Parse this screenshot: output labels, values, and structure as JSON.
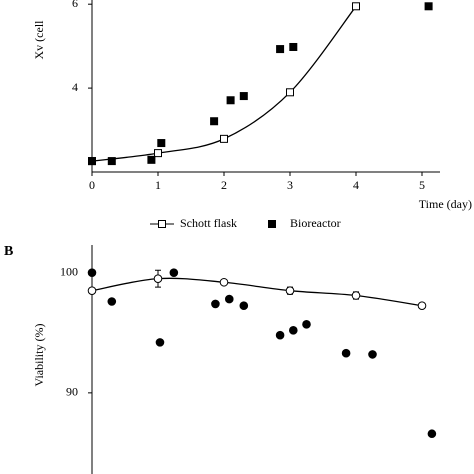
{
  "chart_data": [
    {
      "type": "scatter",
      "y_label": "Xv (cell",
      "x_label": "Time (day)",
      "xlim": [
        0,
        5.3
      ],
      "xticks": [
        0,
        1,
        2,
        3,
        4,
        5
      ],
      "ylim": [
        2,
        6.1
      ],
      "yticks": [
        4,
        6
      ],
      "legend": "bottom",
      "series": [
        {
          "name": "Schott flask",
          "color": "#000000",
          "marker": "open-square",
          "line": true,
          "x": [
            0,
            1,
            2,
            3,
            4
          ],
          "values": [
            2.26,
            2.45,
            2.79,
            3.9,
            5.95
          ]
        },
        {
          "name": "Bioreactor",
          "color": "#000000",
          "marker": "filled-square",
          "line": false,
          "x": [
            0,
            0.3,
            0.9,
            1.05,
            1.85,
            2.1,
            2.3,
            2.85,
            3.05,
            5.1
          ],
          "values": [
            2.26,
            2.26,
            2.29,
            2.69,
            3.21,
            3.71,
            3.81,
            4.93,
            4.98,
            5.95
          ]
        }
      ]
    },
    {
      "type": "scatter",
      "panel_label": "B",
      "y_label": "Viability (%)",
      "xlim": [
        0,
        5.3
      ],
      "ylim": [
        83.25,
        102.3
      ],
      "yticks": [
        90,
        100
      ],
      "series": [
        {
          "name": "Schott flask",
          "color": "#000000",
          "marker": "open-circle",
          "line": true,
          "x": [
            0,
            1,
            2,
            3,
            4,
            5
          ],
          "values": [
            98.5,
            99.5,
            99.2,
            98.5,
            98.1,
            97.25
          ],
          "errors": [
            0.1,
            0.7,
            0.1,
            0.3,
            0.3,
            0.1
          ]
        },
        {
          "name": "Bioreactor",
          "color": "#000000",
          "marker": "filled-circle",
          "line": false,
          "x": [
            0,
            0.3,
            1.03,
            1.24,
            1.87,
            2.08,
            2.3,
            2.85,
            3.05,
            3.25,
            3.85,
            4.25,
            5.15
          ],
          "values": [
            100,
            97.6,
            94.2,
            100,
            97.4,
            97.8,
            97.25,
            94.8,
            95.2,
            95.7,
            93.3,
            93.2,
            86.6
          ]
        }
      ]
    }
  ]
}
